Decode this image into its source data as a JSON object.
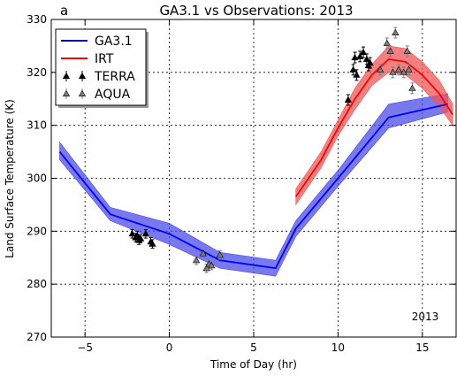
{
  "chart_data": {
    "type": "line",
    "panel_letter": "a",
    "title": "GA3.1 vs Observations: 2013",
    "xlabel": "Time of Day (hr)",
    "ylabel": "Land Surface Temperature (K)",
    "xlim": [
      -7,
      17
    ],
    "ylim": [
      270,
      330
    ],
    "xticks": [
      -5,
      0,
      5,
      10,
      15
    ],
    "yticks": [
      270,
      280,
      290,
      300,
      310,
      320,
      330
    ],
    "xtick_labels": [
      "−5",
      "0",
      "5",
      "10",
      "15"
    ],
    "ytick_labels": [
      "270",
      "280",
      "290",
      "300",
      "310",
      "320",
      "330"
    ],
    "grid": true,
    "legend_position": "top-left",
    "annotation": "2013",
    "series": [
      {
        "name": "GA3.1",
        "kind": "line_band",
        "color": "#0000ff",
        "band_color": "#4c4ce8",
        "x": [
          -6.5,
          -3.5,
          0,
          3,
          6.3,
          7.5,
          10,
          13,
          16.5
        ],
        "y": [
          305.0,
          293.2,
          289.5,
          284.5,
          283.0,
          290.5,
          300.0,
          311.5,
          314.0
        ],
        "lower": [
          303.5,
          292.0,
          287.5,
          283.0,
          281.5,
          289.0,
          298.5,
          309.5,
          312.5
        ],
        "upper": [
          306.8,
          294.5,
          291.5,
          286.0,
          284.5,
          292.0,
          301.5,
          314.0,
          316.0
        ]
      },
      {
        "name": "IRT",
        "kind": "line_band",
        "color": "#ff0000",
        "band_color": "#ee5555",
        "x": [
          7.5,
          9,
          10,
          11,
          12,
          13,
          14,
          15,
          16,
          16.8
        ],
        "y": [
          296.5,
          303.5,
          309.5,
          315.0,
          319.5,
          322.5,
          322.0,
          319.5,
          316.0,
          312.0
        ],
        "lower": [
          295.0,
          302.0,
          308.0,
          313.0,
          317.5,
          320.0,
          319.5,
          317.0,
          313.5,
          310.0
        ],
        "upper": [
          298.0,
          305.0,
          311.0,
          317.0,
          321.5,
          325.0,
          324.5,
          322.0,
          318.5,
          314.0
        ]
      },
      {
        "name": "TERRA",
        "kind": "errorbar",
        "marker": "^",
        "color": "#000000",
        "x": [
          -2.2,
          -2.0,
          -1.9,
          -1.8,
          -1.7,
          -1.4,
          -1.1,
          -1.0,
          10.6,
          10.9,
          11.0,
          11.1,
          11.3,
          11.5,
          11.7,
          11.8,
          11.9
        ],
        "y": [
          289.5,
          288.8,
          289.2,
          288.3,
          288.6,
          289.5,
          288.0,
          287.6,
          314.8,
          320.5,
          322.8,
          319.5,
          323.0,
          323.8,
          322.5,
          321.3,
          321.8
        ],
        "err": [
          0.8,
          0.8,
          0.8,
          0.8,
          0.8,
          0.8,
          0.8,
          0.8,
          1.0,
          1.0,
          1.0,
          1.0,
          1.0,
          1.0,
          1.0,
          1.0,
          1.0
        ]
      },
      {
        "name": "AQUA",
        "kind": "errorbar",
        "marker": "^",
        "color": "#808080",
        "x": [
          1.6,
          2.0,
          2.2,
          2.35,
          2.5,
          3.0,
          12.5,
          12.9,
          13.1,
          13.25,
          13.4,
          13.6,
          13.9,
          14.1,
          14.2,
          14.4
        ],
        "y": [
          284.5,
          285.8,
          283.0,
          283.8,
          283.5,
          285.5,
          320.5,
          325.5,
          324.0,
          320.0,
          327.5,
          320.5,
          320.0,
          324.0,
          320.5,
          317.0
        ],
        "err": [
          0.8,
          0.8,
          0.8,
          0.8,
          0.8,
          0.8,
          1.0,
          1.0,
          1.0,
          1.0,
          1.0,
          1.0,
          1.0,
          1.0,
          1.0,
          1.0
        ]
      }
    ]
  }
}
